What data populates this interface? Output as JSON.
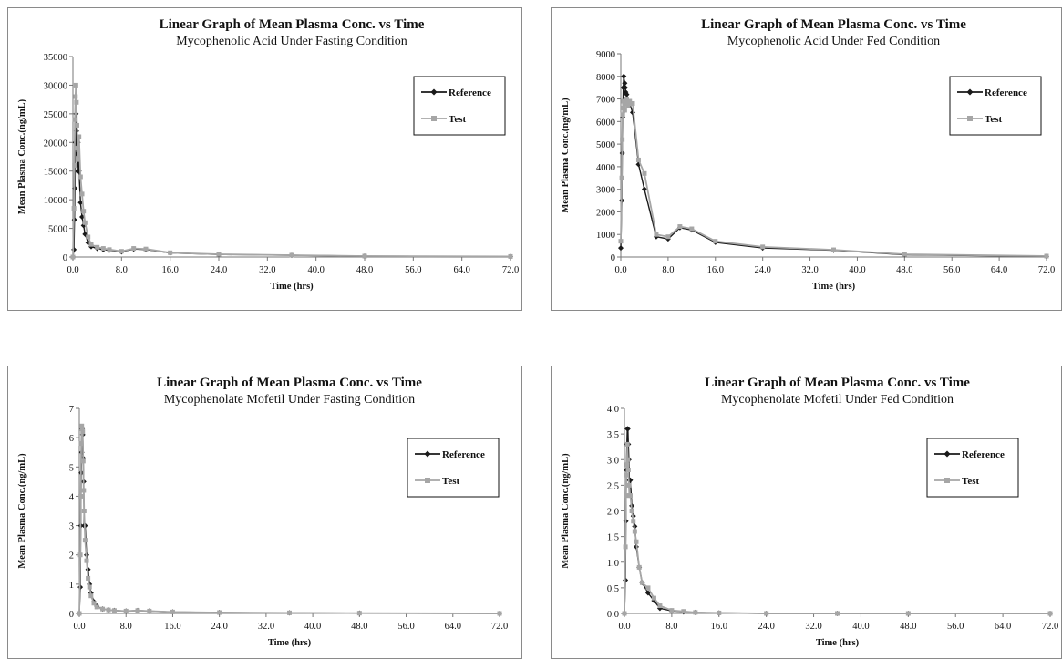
{
  "chart_data": [
    {
      "type": "line",
      "title": "Linear Graph of Mean Plasma Conc. vs Time",
      "subtitle": "Mycophenolic Acid Under Fasting Condition",
      "xlabel": "Time (hrs)",
      "ylabel": "Mean Plasma Conc.(ng/mL)",
      "xlim": [
        0,
        72
      ],
      "ylim": [
        0,
        35000
      ],
      "xticks": [
        "0.0",
        "8.0",
        "16.0",
        "24.0",
        "32.0",
        "40.0",
        "48.0",
        "56.0",
        "64.0",
        "72.0"
      ],
      "yticks": [
        "0",
        "5000",
        "10000",
        "15000",
        "20000",
        "25000",
        "30000",
        "35000"
      ],
      "legend": "right",
      "series": [
        {
          "name": "Reference",
          "color": "#1a1a1a",
          "marker": "diamond",
          "x": [
            0,
            0.17,
            0.25,
            0.33,
            0.42,
            0.5,
            0.58,
            0.67,
            0.75,
            0.83,
            1,
            1.25,
            1.5,
            1.75,
            2,
            2.5,
            3,
            4,
            5,
            6,
            8,
            10,
            12,
            16,
            24,
            36,
            48,
            72
          ],
          "y": [
            0,
            1300,
            6500,
            12000,
            20000,
            25000,
            22000,
            18000,
            15000,
            20000,
            15000,
            9500,
            7000,
            5500,
            4000,
            2500,
            1800,
            1500,
            1300,
            1200,
            900,
            1400,
            1300,
            700,
            450,
            300,
            150,
            80
          ]
        },
        {
          "name": "Test",
          "color": "#a6a6a6",
          "marker": "square",
          "x": [
            0,
            0.17,
            0.25,
            0.33,
            0.42,
            0.5,
            0.58,
            0.67,
            0.75,
            0.83,
            1,
            1.25,
            1.5,
            1.75,
            2,
            2.5,
            3,
            4,
            5,
            6,
            8,
            10,
            12,
            16,
            24,
            36,
            48,
            72
          ],
          "y": [
            0,
            8500,
            16000,
            24000,
            28000,
            30000,
            27000,
            23000,
            19000,
            17000,
            21000,
            14000,
            11000,
            8000,
            6000,
            3500,
            2200,
            1700,
            1500,
            1300,
            1000,
            1500,
            1400,
            750,
            480,
            320,
            160,
            90
          ]
        }
      ]
    },
    {
      "type": "line",
      "title": "Linear Graph of Mean Plasma Conc. vs Time",
      "subtitle": "Mycophenolic Acid Under Fed Condition",
      "xlabel": "Time (hrs)",
      "ylabel": "Mean Plasma Conc.(ng/mL)",
      "xlim": [
        0,
        72
      ],
      "ylim": [
        0,
        9000
      ],
      "xticks": [
        "0.0",
        "8.0",
        "16.0",
        "24.0",
        "32.0",
        "40.0",
        "48.0",
        "56.0",
        "64.0",
        "72.0"
      ],
      "yticks": [
        "0",
        "1000",
        "2000",
        "3000",
        "4000",
        "5000",
        "6000",
        "7000",
        "8000",
        "9000"
      ],
      "legend": "right",
      "series": [
        {
          "name": "Reference",
          "color": "#1a1a1a",
          "marker": "diamond",
          "x": [
            0,
            0.17,
            0.25,
            0.33,
            0.42,
            0.5,
            0.67,
            0.75,
            0.83,
            1,
            1.25,
            1.5,
            2,
            3,
            4,
            6,
            8,
            10,
            12,
            16,
            24,
            36,
            48,
            72
          ],
          "y": [
            400,
            2500,
            4600,
            6200,
            7500,
            8000,
            7700,
            7500,
            7300,
            7200,
            6900,
            6800,
            6400,
            4100,
            3000,
            900,
            800,
            1300,
            1200,
            650,
            400,
            300,
            100,
            30
          ]
        },
        {
          "name": "Test",
          "color": "#a6a6a6",
          "marker": "square",
          "x": [
            0,
            0.17,
            0.25,
            0.33,
            0.42,
            0.5,
            0.67,
            0.75,
            0.83,
            1,
            1.25,
            1.5,
            2,
            3,
            4,
            6,
            8,
            10,
            12,
            16,
            24,
            36,
            48,
            72
          ],
          "y": [
            700,
            3500,
            5200,
            6300,
            6900,
            6600,
            6500,
            6800,
            6900,
            7000,
            6700,
            6900,
            6800,
            4300,
            3700,
            1000,
            900,
            1350,
            1250,
            700,
            450,
            320,
            120,
            40
          ]
        }
      ]
    },
    {
      "type": "line",
      "title": "Linear Graph of Mean Plasma Conc. vs Time",
      "subtitle": "Mycophenolate Mofetil Under Fasting Condition",
      "xlabel": "Time (hrs)",
      "ylabel": "Mean Plasma Conc.(ng/mL)",
      "xlim": [
        0,
        72
      ],
      "ylim": [
        0,
        7
      ],
      "xticks": [
        "0.0",
        "8.0",
        "16.0",
        "24.0",
        "32.0",
        "40.0",
        "48.0",
        "56.0",
        "64.0",
        "72.0"
      ],
      "yticks": [
        "0",
        "1",
        "2",
        "3",
        "4",
        "5",
        "6",
        "7"
      ],
      "legend": "right",
      "series": [
        {
          "name": "Reference",
          "color": "#1a1a1a",
          "marker": "diamond",
          "x": [
            0,
            0.17,
            0.25,
            0.33,
            0.42,
            0.5,
            0.58,
            0.67,
            0.75,
            0.83,
            1,
            1.25,
            1.5,
            1.75,
            2,
            2.5,
            3,
            4,
            5,
            6,
            8,
            10,
            12,
            16,
            24,
            36,
            48,
            72
          ],
          "y": [
            0,
            0.9,
            3,
            4.8,
            5.5,
            6.3,
            6.1,
            5.3,
            4.5,
            3,
            3,
            2,
            1.5,
            1,
            0.7,
            0.4,
            0.25,
            0.15,
            0.12,
            0.1,
            0.08,
            0.1,
            0.08,
            0.05,
            0.03,
            0.02,
            0.01,
            0
          ]
        },
        {
          "name": "Test",
          "color": "#a6a6a6",
          "marker": "square",
          "x": [
            0,
            0.17,
            0.25,
            0.33,
            0.42,
            0.5,
            0.58,
            0.67,
            0.75,
            0.83,
            1,
            1.25,
            1.5,
            1.75,
            2,
            2.5,
            3,
            4,
            5,
            6,
            8,
            10,
            12,
            16,
            24,
            36,
            48,
            72
          ],
          "y": [
            0,
            2,
            4,
            5.8,
            6.4,
            6.3,
            6.2,
            5.2,
            4.2,
            3.5,
            2.5,
            1.8,
            1.2,
            0.9,
            0.6,
            0.35,
            0.22,
            0.15,
            0.12,
            0.1,
            0.08,
            0.1,
            0.08,
            0.05,
            0.03,
            0.02,
            0.01,
            0
          ]
        }
      ]
    },
    {
      "type": "line",
      "title": "Linear Graph of Mean Plasma Conc. vs Time",
      "subtitle": "Mycophenolate Mofetil Under Fed Condition",
      "xlabel": "Time (hrs)",
      "ylabel": "Mean Plasma Conc.(ng/mL)",
      "xlim": [
        0,
        72
      ],
      "ylim": [
        0,
        4.0
      ],
      "xticks": [
        "0.0",
        "8.0",
        "16.0",
        "24.0",
        "32.0",
        "40.0",
        "48.0",
        "56.0",
        "64.0",
        "72.0"
      ],
      "yticks": [
        "0.0",
        "0.5",
        "1.0",
        "1.5",
        "2.0",
        "2.5",
        "3.0",
        "3.5",
        "4.0"
      ],
      "legend": "right",
      "series": [
        {
          "name": "Reference",
          "color": "#1a1a1a",
          "marker": "diamond",
          "x": [
            0,
            0.17,
            0.25,
            0.33,
            0.42,
            0.5,
            0.58,
            0.67,
            0.75,
            0.83,
            1,
            1.25,
            1.5,
            1.75,
            2,
            2.5,
            3,
            4,
            5,
            6,
            8,
            10,
            12,
            16,
            24,
            36,
            48,
            72
          ],
          "y": [
            0,
            0.65,
            1.8,
            2.8,
            3.3,
            3.6,
            3.6,
            3.3,
            3.0,
            2.6,
            2.6,
            2.1,
            1.9,
            1.7,
            1.3,
            0.9,
            0.6,
            0.4,
            0.25,
            0.1,
            0.05,
            0.03,
            0.02,
            0.01,
            0,
            0,
            0,
            0
          ]
        },
        {
          "name": "Test",
          "color": "#a6a6a6",
          "marker": "square",
          "x": [
            0,
            0.17,
            0.25,
            0.33,
            0.42,
            0.5,
            0.58,
            0.67,
            0.75,
            0.83,
            1,
            1.25,
            1.5,
            1.75,
            2,
            2.5,
            3,
            4,
            5,
            6,
            8,
            10,
            12,
            16,
            24,
            36,
            48,
            72
          ],
          "y": [
            0,
            1.3,
            2.3,
            2.7,
            2.9,
            3.3,
            3.0,
            2.8,
            2.5,
            2.3,
            2.3,
            2.0,
            1.8,
            1.6,
            1.4,
            0.9,
            0.6,
            0.5,
            0.3,
            0.15,
            0.06,
            0.04,
            0.02,
            0.01,
            0,
            0,
            0,
            0
          ]
        }
      ]
    }
  ]
}
